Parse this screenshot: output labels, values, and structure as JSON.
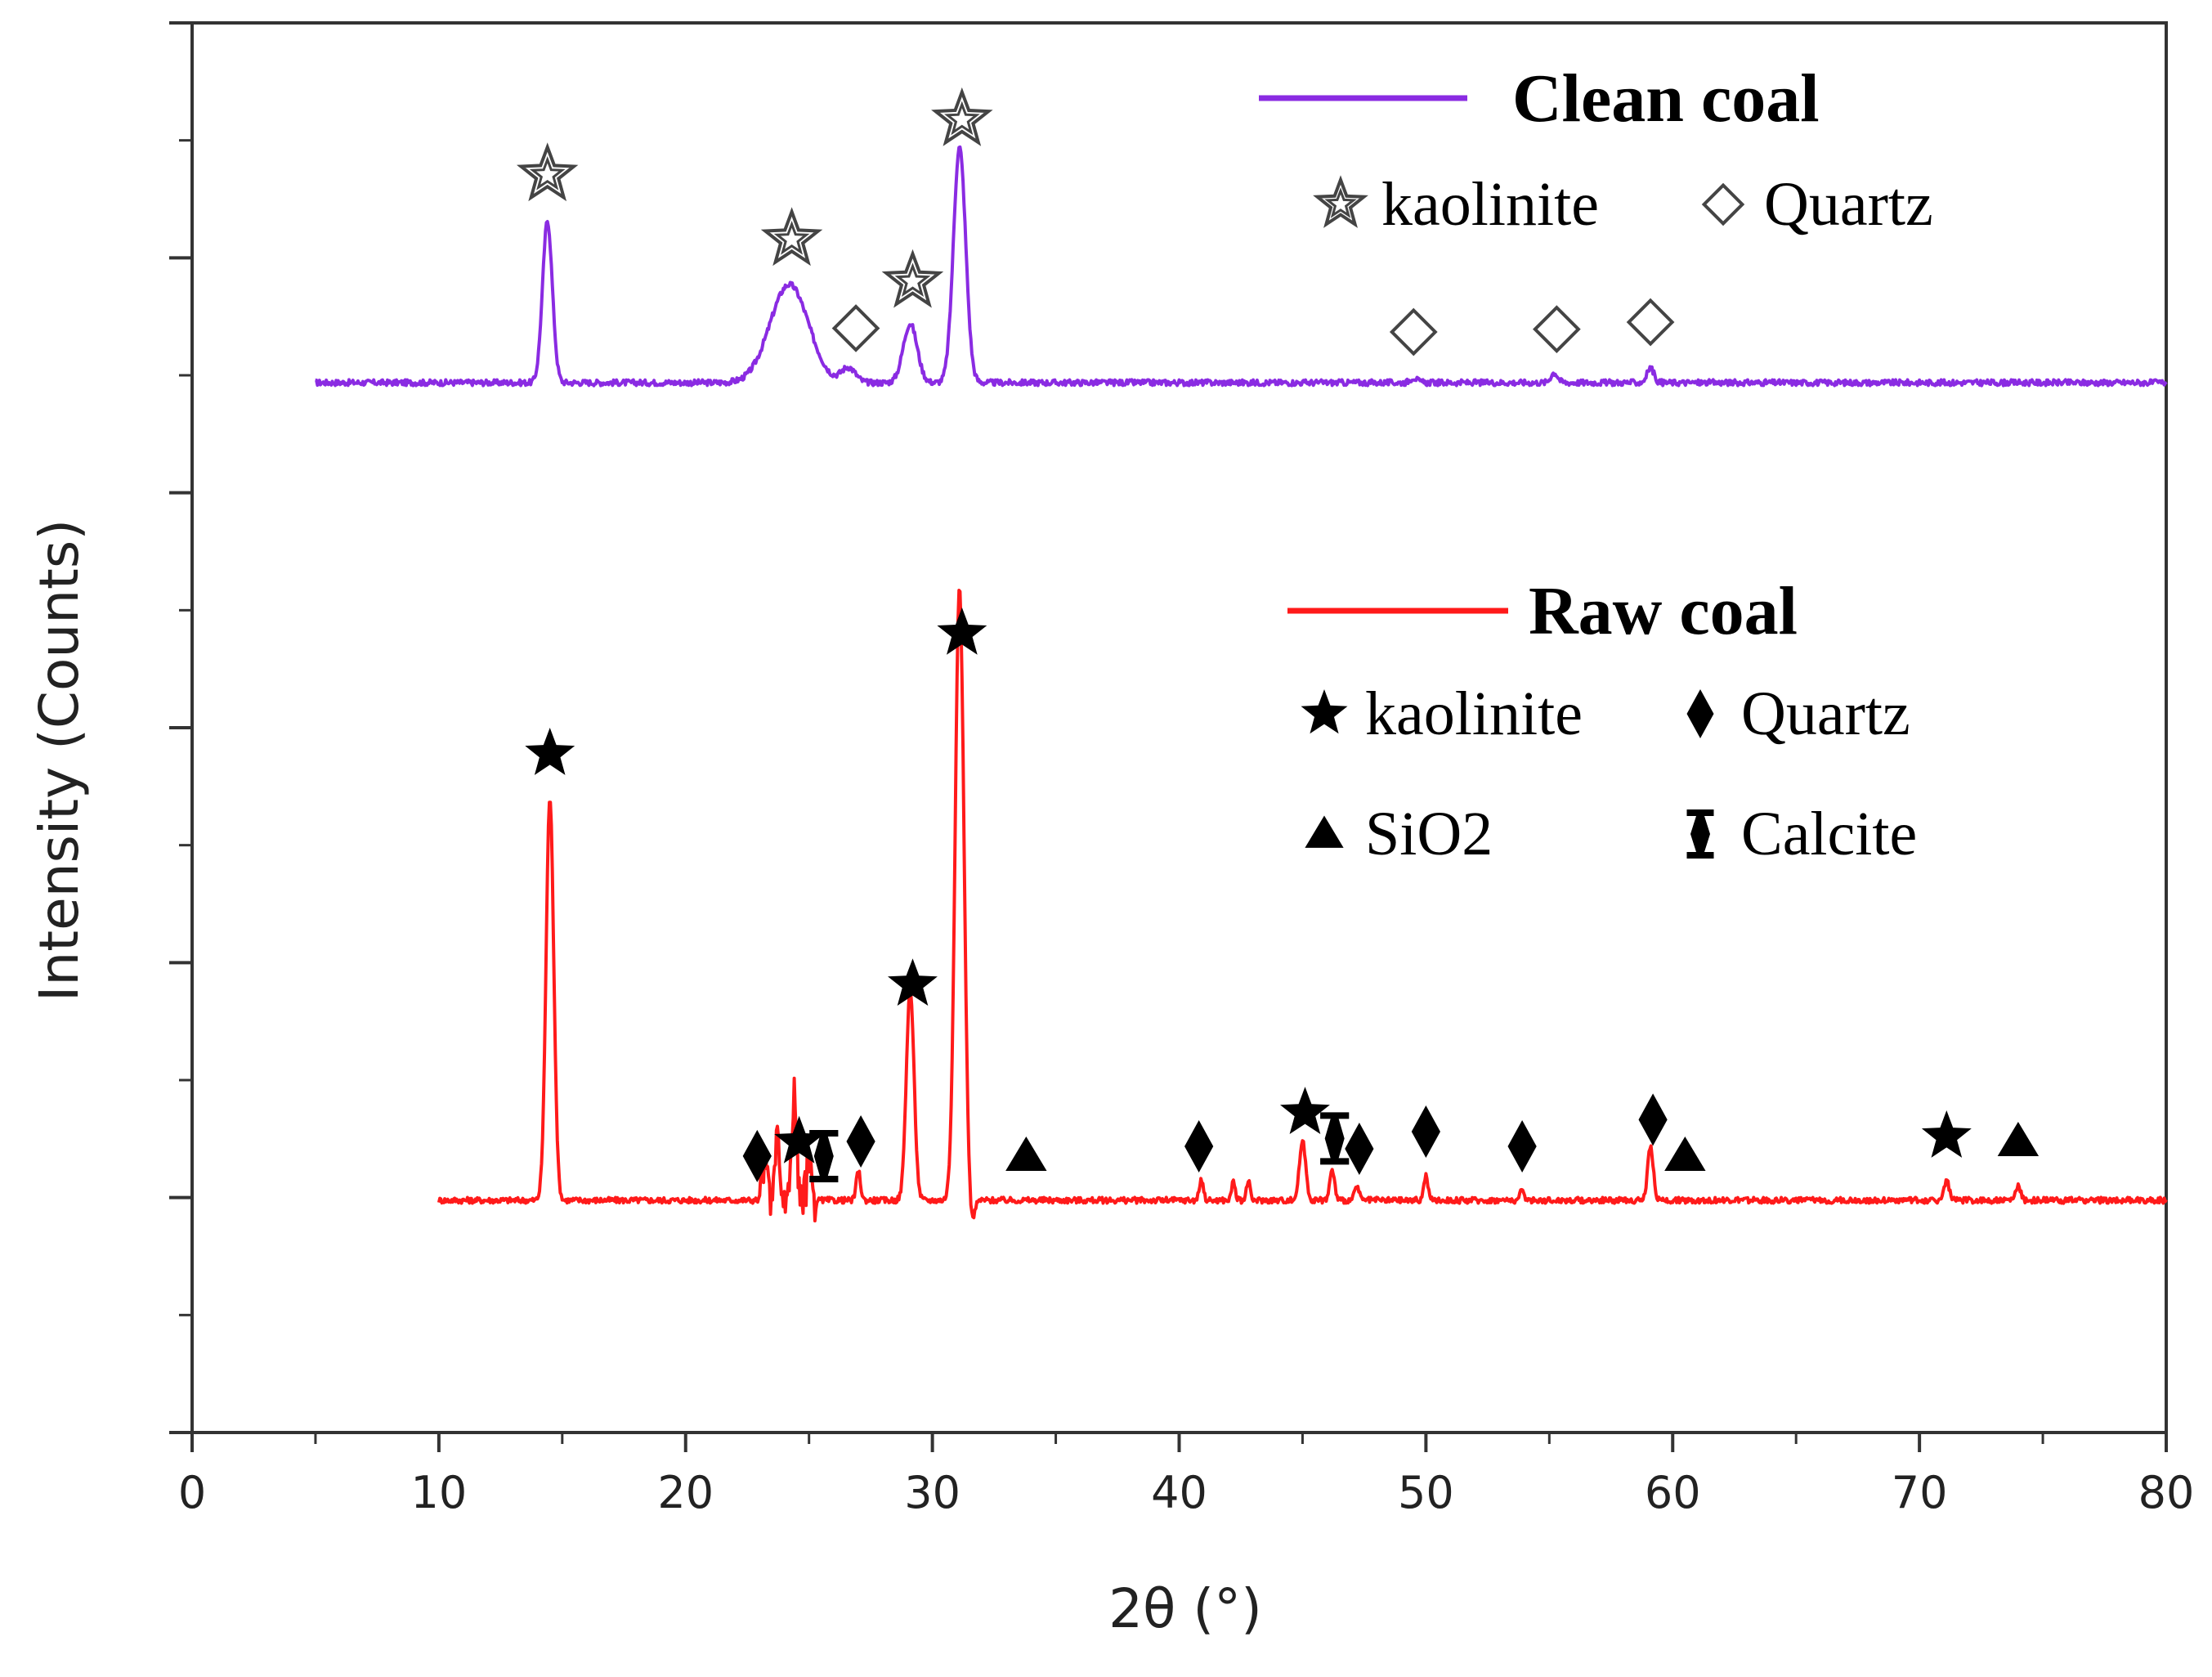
{
  "chart_data": {
    "type": "line",
    "xlabel": "2θ (°)",
    "ylabel": "Intensity (Counts)",
    "xlim": [
      0,
      80
    ],
    "xticks": [
      "0",
      "10",
      "20",
      "30",
      "40",
      "50",
      "60",
      "70",
      "80"
    ],
    "y_tick_labels_shown": false,
    "grid": false,
    "legend_placement": "right, inside plot",
    "series": [
      {
        "name": "Clean coal",
        "color": "#8a2be2",
        "x_range": [
          5,
          80
        ],
        "peaks": [
          {
            "x": 14.4,
            "height": 0.33,
            "width": 0.28
          },
          {
            "x": 24.2,
            "height": 0.2,
            "width": 1.1
          },
          {
            "x": 26.6,
            "height": 0.03,
            "width": 0.4
          },
          {
            "x": 29.1,
            "height": 0.12,
            "width": 0.4
          },
          {
            "x": 31.1,
            "height": 0.48,
            "width": 0.35
          },
          {
            "x": 49.5,
            "height": 0.01,
            "width": 0.2
          },
          {
            "x": 55.2,
            "height": 0.02,
            "width": 0.2
          },
          {
            "x": 59.1,
            "height": 0.03,
            "width": 0.2
          }
        ],
        "markers": [
          {
            "x": 14.4,
            "symbol": "kaolinite"
          },
          {
            "x": 24.3,
            "symbol": "kaolinite"
          },
          {
            "x": 26.9,
            "symbol": "Quartz"
          },
          {
            "x": 29.2,
            "symbol": "kaolinite"
          },
          {
            "x": 31.2,
            "symbol": "kaolinite"
          },
          {
            "x": 49.5,
            "symbol": "Quartz"
          },
          {
            "x": 55.3,
            "symbol": "Quartz"
          },
          {
            "x": 59.1,
            "symbol": "Quartz"
          }
        ],
        "legend": {
          "title": "Clean coal",
          "entries": [
            {
              "symbol": "kaolinite",
              "label": "kaolinite"
            },
            {
              "symbol": "Quartz",
              "label": "Quartz"
            }
          ]
        }
      },
      {
        "name": "Raw coal",
        "color": "#ff1a1a",
        "x_range": [
          10,
          80
        ],
        "peaks": [
          {
            "x": 14.5,
            "height": 0.82,
            "width": 0.22
          },
          {
            "x": 23.2,
            "height": 0.09,
            "width": 0.12
          },
          {
            "x": 23.7,
            "height": 0.13,
            "width": 0.12
          },
          {
            "x": 24.4,
            "height": 0.22,
            "width": 0.14
          },
          {
            "x": 25.0,
            "height": 0.1,
            "width": 0.12
          },
          {
            "x": 27.0,
            "height": 0.06,
            "width": 0.12
          },
          {
            "x": 29.1,
            "height": 0.43,
            "width": 0.22
          },
          {
            "x": 31.1,
            "height": 1.25,
            "width": 0.25
          },
          {
            "x": 40.9,
            "height": 0.04,
            "width": 0.12
          },
          {
            "x": 42.2,
            "height": 0.04,
            "width": 0.1
          },
          {
            "x": 42.8,
            "height": 0.04,
            "width": 0.1
          },
          {
            "x": 45.0,
            "height": 0.12,
            "width": 0.18
          },
          {
            "x": 46.2,
            "height": 0.06,
            "width": 0.14
          },
          {
            "x": 47.2,
            "height": 0.03,
            "width": 0.12
          },
          {
            "x": 50.0,
            "height": 0.05,
            "width": 0.12
          },
          {
            "x": 53.9,
            "height": 0.02,
            "width": 0.12
          },
          {
            "x": 59.1,
            "height": 0.11,
            "width": 0.16
          },
          {
            "x": 71.1,
            "height": 0.04,
            "width": 0.15
          },
          {
            "x": 74.0,
            "height": 0.03,
            "width": 0.14
          }
        ],
        "markers": [
          {
            "x": 14.5,
            "symbol": "kaolinite"
          },
          {
            "x": 22.9,
            "symbol": "Quartz"
          },
          {
            "x": 24.6,
            "symbol": "kaolinite"
          },
          {
            "x": 25.6,
            "symbol": "Calcite"
          },
          {
            "x": 27.1,
            "symbol": "Quartz"
          },
          {
            "x": 29.2,
            "symbol": "kaolinite"
          },
          {
            "x": 31.2,
            "symbol": "kaolinite"
          },
          {
            "x": 33.8,
            "symbol": "SiO2"
          },
          {
            "x": 40.8,
            "symbol": "Quartz"
          },
          {
            "x": 45.1,
            "symbol": "kaolinite"
          },
          {
            "x": 46.3,
            "symbol": "Calcite"
          },
          {
            "x": 47.3,
            "symbol": "Quartz"
          },
          {
            "x": 50.0,
            "symbol": "Quartz"
          },
          {
            "x": 53.9,
            "symbol": "Quartz"
          },
          {
            "x": 59.2,
            "symbol": "Quartz"
          },
          {
            "x": 60.5,
            "symbol": "SiO2"
          },
          {
            "x": 71.1,
            "symbol": "kaolinite"
          },
          {
            "x": 74.0,
            "symbol": "SiO2"
          }
        ],
        "legend": {
          "title": "Raw coal",
          "entries": [
            {
              "symbol": "kaolinite",
              "label": "kaolinite"
            },
            {
              "symbol": "Quartz",
              "label": "Quartz"
            },
            {
              "symbol": "SiO2",
              "label": "SiO2"
            },
            {
              "symbol": "Calcite",
              "label": "Calcite"
            }
          ]
        }
      }
    ]
  }
}
